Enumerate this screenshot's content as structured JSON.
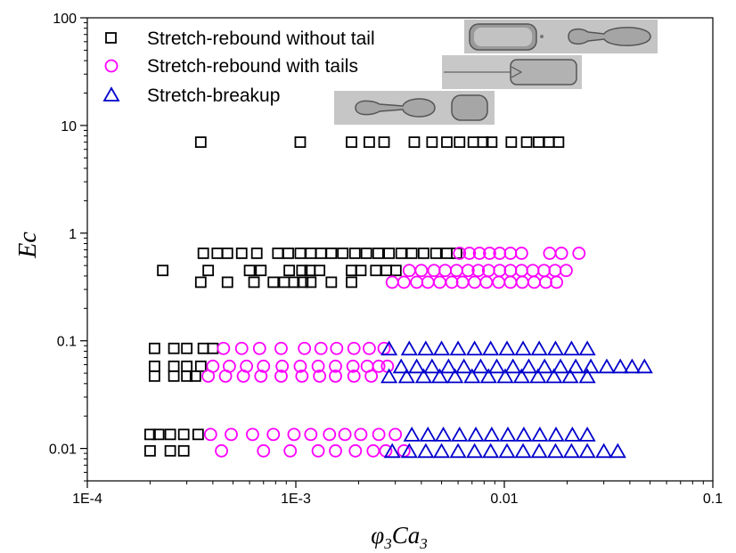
{
  "chart_data": {
    "type": "scatter",
    "xlabel": {
      "base": "φ",
      "sub": "3",
      "base2": "Ca",
      "sub2": "3"
    },
    "ylabel": "Ec",
    "xscale": "log",
    "yscale": "log",
    "xlim": [
      0.0001,
      0.1
    ],
    "ylim": [
      0.005,
      100
    ],
    "xticks": [
      {
        "value": 0.0001,
        "label": "1E-4"
      },
      {
        "value": 0.001,
        "label": "1E-3"
      },
      {
        "value": 0.01,
        "label": "0.01"
      },
      {
        "value": 0.1,
        "label": "0.1"
      }
    ],
    "yticks": [
      {
        "value": 0.01,
        "label": "0.01"
      },
      {
        "value": 0.1,
        "label": "0.1"
      },
      {
        "value": 1,
        "label": "1"
      },
      {
        "value": 10,
        "label": "10"
      },
      {
        "value": 100,
        "label": "100"
      }
    ],
    "grid": false,
    "legend_position": "top-left",
    "series": [
      {
        "name": "Stretch-rebound without tail",
        "marker": "square",
        "color": "#000000",
        "groups": [
          {
            "y": 7,
            "x": [
              0.00035,
              0.00105,
              0.00185,
              0.00225,
              0.00265,
              0.0037,
              0.0045,
              0.0053,
              0.0061,
              0.0071,
              0.0079,
              0.0087,
              0.0108,
              0.0128,
              0.0146,
              0.0164,
              0.0182
            ]
          },
          {
            "y": 0.65,
            "x": [
              0.00036,
              0.00042,
              0.00047,
              0.00055,
              0.00065,
              0.00082,
              0.00092,
              0.00105,
              0.00118,
              0.00132,
              0.00148,
              0.00168,
              0.00192,
              0.00218,
              0.00248,
              0.0028,
              0.0032,
              0.0036,
              0.0041,
              0.0047,
              0.0053,
              0.0059
            ]
          },
          {
            "y": 0.45,
            "x": [
              0.00023,
              0.00038,
              0.0006,
              0.00068,
              0.00093,
              0.00107,
              0.00117,
              0.0013,
              0.00185,
              0.00205,
              0.00242,
              0.00272,
              0.00302
            ]
          },
          {
            "y": 0.35,
            "x": [
              0.00035,
              0.00047,
              0.00063,
              0.00078,
              0.00088,
              0.00098,
              0.00108,
              0.00118,
              0.00148,
              0.00185
            ]
          },
          {
            "y": 0.085,
            "x": [
              0.00021,
              0.00026,
              0.0003,
              0.00036,
              0.0004
            ]
          },
          {
            "y": 0.058,
            "x": [
              0.00021,
              0.00026,
              0.0003,
              0.00035
            ]
          },
          {
            "y": 0.047,
            "x": [
              0.00021,
              0.00026,
              0.0003,
              0.00033
            ]
          },
          {
            "y": 0.0135,
            "x": [
              0.0002,
              0.00022,
              0.00025,
              0.00029,
              0.00034
            ]
          },
          {
            "y": 0.0095,
            "x": [
              0.0002,
              0.00025,
              0.00029
            ]
          }
        ]
      },
      {
        "name": "Stretch-rebound with tails",
        "marker": "circle",
        "color": "#ff00ff",
        "groups": [
          {
            "y": 0.65,
            "x": [
              0.0061,
              0.0068,
              0.0076,
              0.0085,
              0.0095,
              0.0107,
              0.0121,
              0.0165,
              0.0188,
              0.0228
            ]
          },
          {
            "y": 0.45,
            "x": [
              0.0035,
              0.004,
              0.0046,
              0.0052,
              0.0059,
              0.0067,
              0.0075,
              0.0084,
              0.0095,
              0.0107,
              0.0121,
              0.0137,
              0.0155,
              0.0175,
              0.0198
            ]
          },
          {
            "y": 0.35,
            "x": [
              0.0029,
              0.0033,
              0.0038,
              0.0043,
              0.0049,
              0.0056,
              0.0063,
              0.0072,
              0.0082,
              0.0094,
              0.0107,
              0.0122,
              0.0139,
              0.0158,
              0.0178
            ]
          },
          {
            "y": 0.085,
            "x": [
              0.00045,
              0.00055,
              0.00067,
              0.00085,
              0.0011,
              0.00132,
              0.00157,
              0.0019,
              0.00225,
              0.00265
            ]
          },
          {
            "y": 0.058,
            "x": [
              0.0004,
              0.00048,
              0.00058,
              0.0007,
              0.00086,
              0.00105,
              0.00128,
              0.00155,
              0.00188,
              0.0022,
              0.0025,
              0.00275
            ]
          },
          {
            "y": 0.047,
            "x": [
              0.00038,
              0.00046,
              0.00056,
              0.00068,
              0.00085,
              0.00107,
              0.0013,
              0.00155,
              0.0019,
              0.0023
            ]
          },
          {
            "y": 0.0135,
            "x": [
              0.00039,
              0.00049,
              0.00062,
              0.00078,
              0.00098,
              0.00118,
              0.00145,
              0.00172,
              0.00205,
              0.0025,
              0.003
            ]
          },
          {
            "y": 0.0095,
            "x": [
              0.00044,
              0.0007,
              0.00094,
              0.00128,
              0.00155,
              0.00193,
              0.00235,
              0.0027,
              0.0033
            ]
          }
        ]
      },
      {
        "name": "Stretch-breakup",
        "marker": "triangle",
        "color": "#0000cc",
        "groups": [
          {
            "y": 0.085,
            "x": [
              0.0028,
              0.0035,
              0.0042,
              0.005,
              0.006,
              0.0072,
              0.0086,
              0.0103,
              0.0123,
              0.0147,
              0.0176,
              0.021,
              0.025
            ]
          },
          {
            "y": 0.058,
            "x": [
              0.0032,
              0.0038,
              0.0045,
              0.0054,
              0.0064,
              0.0077,
              0.0092,
              0.011,
              0.0131,
              0.0156,
              0.0186,
              0.022,
              0.026,
              0.031,
              0.036,
              0.041,
              0.047
            ]
          },
          {
            "y": 0.047,
            "x": [
              0.0028,
              0.0034,
              0.0041,
              0.0049,
              0.0058,
              0.007,
              0.0084,
              0.0101,
              0.0121,
              0.0145,
              0.0173,
              0.0207,
              0.025
            ]
          },
          {
            "y": 0.0135,
            "x": [
              0.0036,
              0.0043,
              0.0051,
              0.0061,
              0.0073,
              0.0087,
              0.0104,
              0.0124,
              0.0148,
              0.0177,
              0.0212,
              0.025
            ]
          },
          {
            "y": 0.0095,
            "x": [
              0.0029,
              0.0035,
              0.0042,
              0.005,
              0.006,
              0.0072,
              0.0086,
              0.0103,
              0.0123,
              0.0147,
              0.0176,
              0.021,
              0.025,
              0.03,
              0.035
            ]
          }
        ]
      }
    ],
    "insets": [
      {
        "name": "stretch-rebound-without-tail-image"
      },
      {
        "name": "stretch-rebound-with-tails-image"
      },
      {
        "name": "stretch-breakup-image"
      }
    ]
  }
}
